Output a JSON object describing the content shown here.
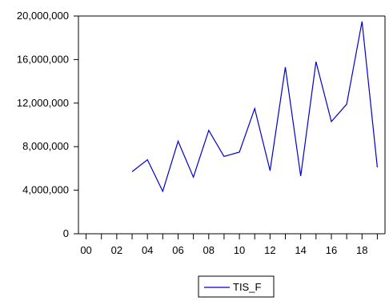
{
  "chart_data": {
    "type": "line",
    "title": "",
    "xlabel": "",
    "ylabel": "",
    "x": [
      2003,
      2004,
      2005,
      2006,
      2007,
      2008,
      2009,
      2010,
      2011,
      2012,
      2013,
      2014,
      2015,
      2016,
      2017,
      2018,
      2019
    ],
    "series": [
      {
        "name": "TIS_F",
        "color": "#0000cc",
        "values": [
          5700000,
          6800000,
          3900000,
          8500000,
          5200000,
          9500000,
          7100000,
          7500000,
          11500000,
          5800000,
          15300000,
          5300000,
          15800000,
          10300000,
          11900000,
          19500000,
          6100000
        ]
      }
    ],
    "ylim": [
      0,
      20000000
    ],
    "y_ticks": [
      {
        "value": 0,
        "label": "0"
      },
      {
        "value": 4000000,
        "label": "4,000,000"
      },
      {
        "value": 8000000,
        "label": "8,000,000"
      },
      {
        "value": 12000000,
        "label": "12,000,000"
      },
      {
        "value": 16000000,
        "label": "16,000,000"
      },
      {
        "value": 20000000,
        "label": "20,000,000"
      }
    ],
    "xlim": [
      1999.5,
      2019.5
    ],
    "x_ticks": [
      {
        "value": 2000,
        "label": "00"
      },
      {
        "value": 2002,
        "label": "02"
      },
      {
        "value": 2004,
        "label": "04"
      },
      {
        "value": 2006,
        "label": "06"
      },
      {
        "value": 2008,
        "label": "08"
      },
      {
        "value": 2010,
        "label": "10"
      },
      {
        "value": 2012,
        "label": "12"
      },
      {
        "value": 2014,
        "label": "14"
      },
      {
        "value": 2016,
        "label": "16"
      },
      {
        "value": 2018,
        "label": "18"
      }
    ],
    "grid": false,
    "legend_position": "bottom-center"
  }
}
